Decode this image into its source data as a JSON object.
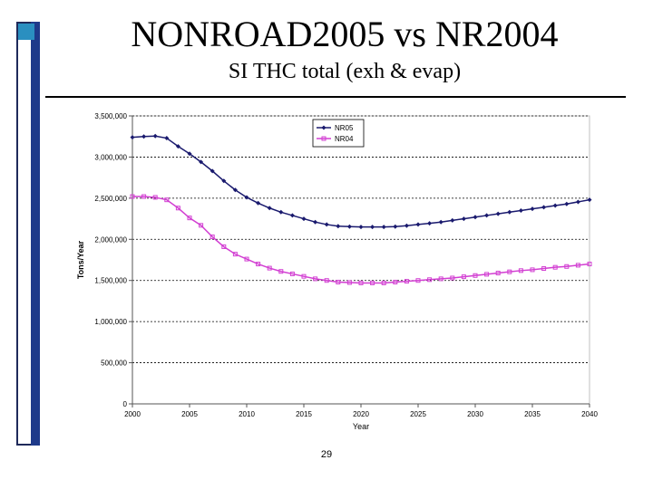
{
  "slide": {
    "title": "NONROAD2005 vs NR2004",
    "subtitle": "SI THC total (exh & evap)",
    "page_number": "29"
  },
  "colors": {
    "series_nr05": "#1a1a6e",
    "series_nr04": "#d23fd2",
    "accent_bar": "#1e3a8a",
    "accent_square": "#2a8fc0"
  },
  "chart_data": {
    "type": "line",
    "title": "",
    "xlabel": "Year",
    "ylabel": "Tons/Year",
    "xlim": [
      2000,
      2040
    ],
    "ylim": [
      0,
      3500000
    ],
    "grid": true,
    "legend_position": "top-center",
    "x_ticks": [
      2000,
      2005,
      2010,
      2015,
      2020,
      2025,
      2030,
      2035,
      2040
    ],
    "x_tick_labels": [
      "2000",
      "2005",
      "2010",
      "2015",
      "2020",
      "2025",
      "2030",
      "2035",
      "2040"
    ],
    "y_ticks": [
      0,
      500000,
      1000000,
      1500000,
      2000000,
      2500000,
      3000000,
      3500000
    ],
    "y_tick_labels": [
      "0",
      "500,000",
      "1,000,000",
      "1,500,000",
      "2,000,000",
      "2,500,000",
      "3,000,000",
      "3,500,000"
    ],
    "x": [
      2000,
      2001,
      2002,
      2003,
      2004,
      2005,
      2006,
      2007,
      2008,
      2009,
      2010,
      2011,
      2012,
      2013,
      2014,
      2015,
      2016,
      2017,
      2018,
      2019,
      2020,
      2021,
      2022,
      2023,
      2024,
      2025,
      2026,
      2027,
      2028,
      2029,
      2030,
      2031,
      2032,
      2033,
      2034,
      2035,
      2036,
      2037,
      2038,
      2039,
      2040
    ],
    "series": [
      {
        "name": "NR05",
        "marker": "diamond",
        "values": [
          3240000,
          3250000,
          3255000,
          3230000,
          3130000,
          3040000,
          2940000,
          2830000,
          2710000,
          2600000,
          2510000,
          2440000,
          2380000,
          2330000,
          2290000,
          2250000,
          2210000,
          2180000,
          2160000,
          2155000,
          2150000,
          2150000,
          2150000,
          2155000,
          2165000,
          2180000,
          2195000,
          2210000,
          2230000,
          2250000,
          2270000,
          2290000,
          2310000,
          2330000,
          2350000,
          2370000,
          2390000,
          2410000,
          2430000,
          2455000,
          2480000
        ]
      },
      {
        "name": "NR04",
        "marker": "square",
        "values": [
          2520000,
          2520000,
          2510000,
          2480000,
          2380000,
          2260000,
          2170000,
          2030000,
          1910000,
          1820000,
          1760000,
          1700000,
          1650000,
          1610000,
          1580000,
          1550000,
          1520000,
          1500000,
          1480000,
          1475000,
          1470000,
          1470000,
          1470000,
          1480000,
          1490000,
          1500000,
          1510000,
          1520000,
          1530000,
          1545000,
          1560000,
          1575000,
          1590000,
          1605000,
          1620000,
          1630000,
          1645000,
          1660000,
          1670000,
          1685000,
          1700000
        ]
      }
    ]
  }
}
